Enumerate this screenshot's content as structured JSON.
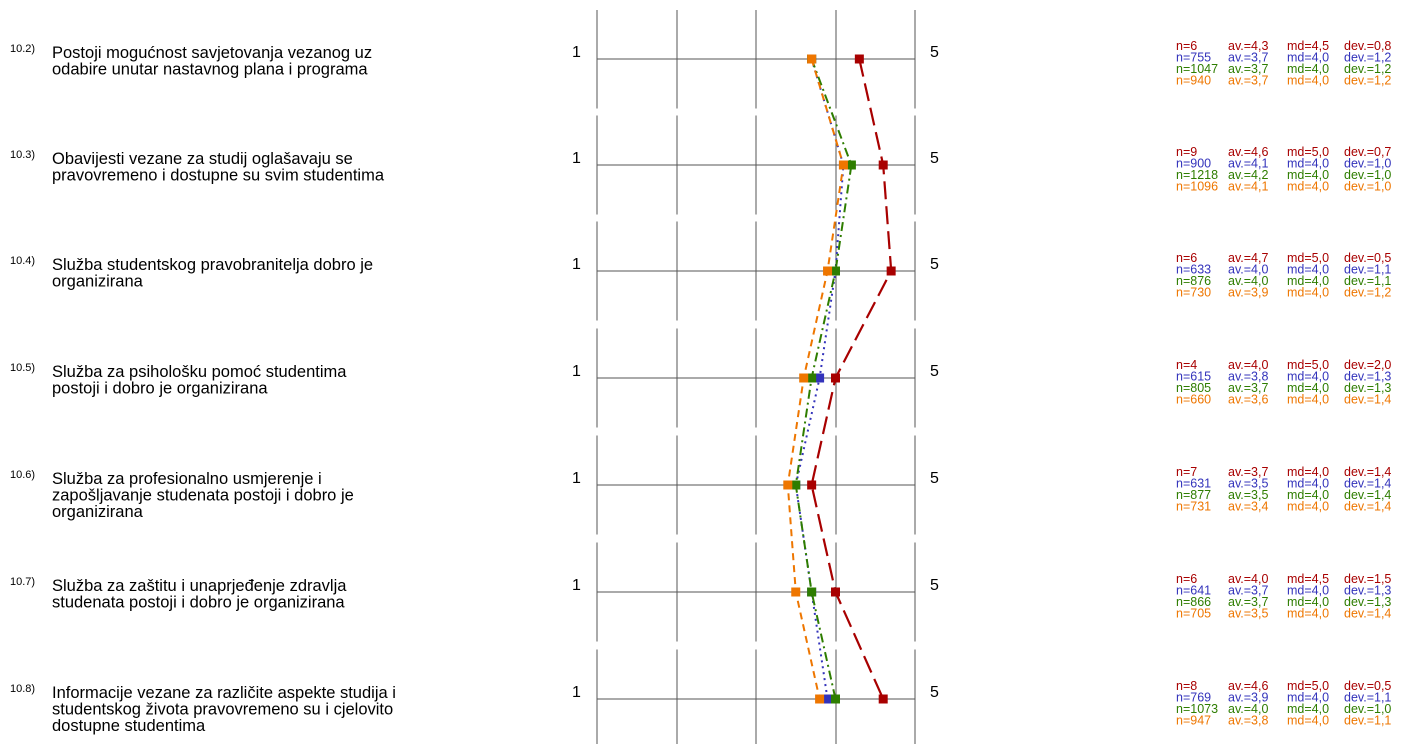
{
  "chart_data": {
    "type": "line",
    "scale": {
      "min": 1,
      "max": 5,
      "min_label": "1",
      "max_label": "5"
    },
    "series": [
      {
        "color": "#a80000",
        "dash": "long-dash"
      },
      {
        "color": "#3333bb",
        "dash": "dotted"
      },
      {
        "color": "#2e7d00",
        "dash": "dash-dot"
      },
      {
        "color": "#ee7600",
        "dash": "dashed"
      }
    ],
    "questions": [
      {
        "id": "10.2)",
        "lines": [
          "Postoji mogućnost savjetovanja vezanog uz",
          "odabire unutar nastavnog plana i programa"
        ],
        "stats": [
          {
            "n": "n=6",
            "av": "av.=4,3",
            "md": "md=4,5",
            "dev": "dev.=0,8"
          },
          {
            "n": "n=755",
            "av": "av.=3,7",
            "md": "md=4,0",
            "dev": "dev.=1,2"
          },
          {
            "n": "n=1047",
            "av": "av.=3,7",
            "md": "md=4,0",
            "dev": "dev.=1,2"
          },
          {
            "n": "n=940",
            "av": "av.=3,7",
            "md": "md=4,0",
            "dev": "dev.=1,2"
          }
        ],
        "values": [
          4.3,
          3.7,
          3.7,
          3.7
        ]
      },
      {
        "id": "10.3)",
        "lines": [
          "Obavijesti vezane za studij oglašavaju se",
          "pravovremeno i dostupne su svim studentima"
        ],
        "stats": [
          {
            "n": "n=9",
            "av": "av.=4,6",
            "md": "md=5,0",
            "dev": "dev.=0,7"
          },
          {
            "n": "n=900",
            "av": "av.=4,1",
            "md": "md=4,0",
            "dev": "dev.=1,0"
          },
          {
            "n": "n=1218",
            "av": "av.=4,2",
            "md": "md=4,0",
            "dev": "dev.=1,0"
          },
          {
            "n": "n=1096",
            "av": "av.=4,1",
            "md": "md=4,0",
            "dev": "dev.=1,0"
          }
        ],
        "values": [
          4.6,
          4.1,
          4.2,
          4.1
        ]
      },
      {
        "id": "10.4)",
        "lines": [
          "Služba studentskog pravobranitelja dobro je",
          "organizirana"
        ],
        "stats": [
          {
            "n": "n=6",
            "av": "av.=4,7",
            "md": "md=5,0",
            "dev": "dev.=0,5"
          },
          {
            "n": "n=633",
            "av": "av.=4,0",
            "md": "md=4,0",
            "dev": "dev.=1,1"
          },
          {
            "n": "n=876",
            "av": "av.=4,0",
            "md": "md=4,0",
            "dev": "dev.=1,1"
          },
          {
            "n": "n=730",
            "av": "av.=3,9",
            "md": "md=4,0",
            "dev": "dev.=1,2"
          }
        ],
        "values": [
          4.7,
          4.0,
          4.0,
          3.9
        ]
      },
      {
        "id": "10.5)",
        "lines": [
          "Služba za psihološku pomoć studentima",
          "postoji i dobro je organizirana"
        ],
        "stats": [
          {
            "n": "n=4",
            "av": "av.=4,0",
            "md": "md=5,0",
            "dev": "dev.=2,0"
          },
          {
            "n": "n=615",
            "av": "av.=3,8",
            "md": "md=4,0",
            "dev": "dev.=1,3"
          },
          {
            "n": "n=805",
            "av": "av.=3,7",
            "md": "md=4,0",
            "dev": "dev.=1,3"
          },
          {
            "n": "n=660",
            "av": "av.=3,6",
            "md": "md=4,0",
            "dev": "dev.=1,4"
          }
        ],
        "values": [
          4.0,
          3.8,
          3.7,
          3.6
        ]
      },
      {
        "id": "10.6)",
        "lines": [
          "Služba za profesionalno usmjerenje i",
          "zapošljavanje studenata postoji i dobro je",
          "organizirana"
        ],
        "stats": [
          {
            "n": "n=7",
            "av": "av.=3,7",
            "md": "md=4,0",
            "dev": "dev.=1,4"
          },
          {
            "n": "n=631",
            "av": "av.=3,5",
            "md": "md=4,0",
            "dev": "dev.=1,4"
          },
          {
            "n": "n=877",
            "av": "av.=3,5",
            "md": "md=4,0",
            "dev": "dev.=1,4"
          },
          {
            "n": "n=731",
            "av": "av.=3,4",
            "md": "md=4,0",
            "dev": "dev.=1,4"
          }
        ],
        "values": [
          3.7,
          3.5,
          3.5,
          3.4
        ]
      },
      {
        "id": "10.7)",
        "lines": [
          "Služba za zaštitu i unaprjeđenje zdravlja",
          "studenata postoji i dobro je organizirana"
        ],
        "stats": [
          {
            "n": "n=6",
            "av": "av.=4,0",
            "md": "md=4,5",
            "dev": "dev.=1,5"
          },
          {
            "n": "n=641",
            "av": "av.=3,7",
            "md": "md=4,0",
            "dev": "dev.=1,3"
          },
          {
            "n": "n=866",
            "av": "av.=3,7",
            "md": "md=4,0",
            "dev": "dev.=1,3"
          },
          {
            "n": "n=705",
            "av": "av.=3,5",
            "md": "md=4,0",
            "dev": "dev.=1,4"
          }
        ],
        "values": [
          4.0,
          3.7,
          3.7,
          3.5
        ]
      },
      {
        "id": "10.8)",
        "lines": [
          "Informacije vezane za različite aspekte studija i",
          "studentskog života pravovremeno su i cjelovito",
          "dostupne studentima"
        ],
        "stats": [
          {
            "n": "n=8",
            "av": "av.=4,6",
            "md": "md=5,0",
            "dev": "dev.=0,5"
          },
          {
            "n": "n=769",
            "av": "av.=3,9",
            "md": "md=4,0",
            "dev": "dev.=1,1"
          },
          {
            "n": "n=1073",
            "av": "av.=4,0",
            "md": "md=4,0",
            "dev": "dev.=1,0"
          },
          {
            "n": "n=947",
            "av": "av.=3,8",
            "md": "md=4,0",
            "dev": "dev.=1,1"
          }
        ],
        "values": [
          4.6,
          3.9,
          4.0,
          3.8
        ]
      }
    ]
  }
}
